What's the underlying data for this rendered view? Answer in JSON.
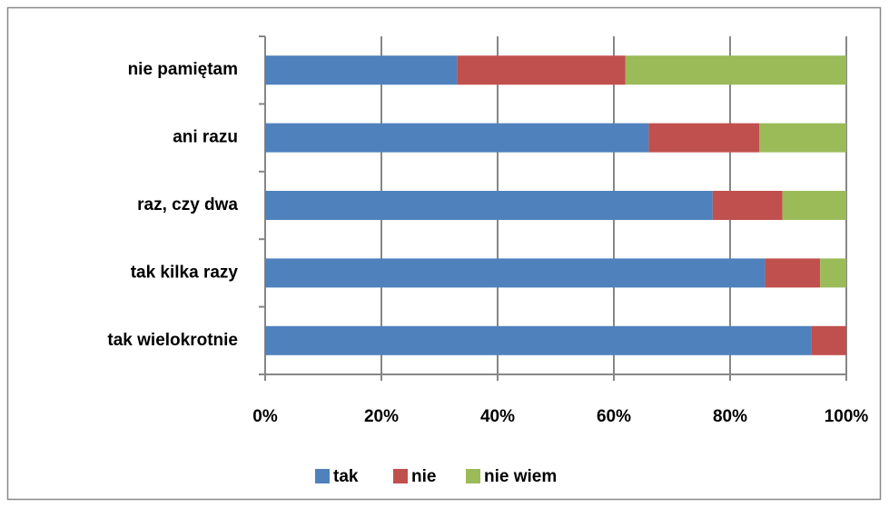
{
  "chart_data": {
    "type": "stacked_bar_horizontal",
    "categories": [
      "nie pamiętam",
      "ani razu",
      "raz, czy dwa",
      "tak kilka razy",
      "tak wielokrotnie"
    ],
    "series": [
      {
        "name": "tak",
        "color": "#4f81bd",
        "values": [
          33,
          66,
          77,
          86,
          94
        ]
      },
      {
        "name": "nie",
        "color": "#c0504d",
        "values": [
          29,
          19,
          12,
          9.5,
          6
        ]
      },
      {
        "name": "nie wiem",
        "color": "#9bbb59",
        "values": [
          38,
          15,
          11,
          4.5,
          0
        ]
      }
    ],
    "xlim": [
      0,
      100
    ],
    "xticks": [
      {
        "value": 0,
        "label": "0%"
      },
      {
        "value": 20,
        "label": "20%"
      },
      {
        "value": 40,
        "label": "40%"
      },
      {
        "value": 60,
        "label": "60%"
      },
      {
        "value": 80,
        "label": "80%"
      },
      {
        "value": 100,
        "label": "100%"
      }
    ],
    "grid": true,
    "legend": "bottom"
  }
}
